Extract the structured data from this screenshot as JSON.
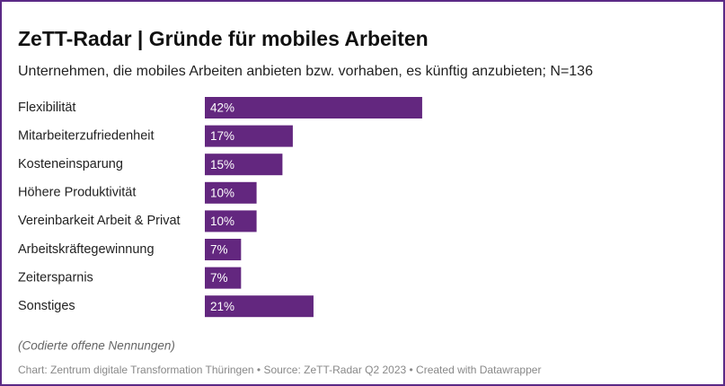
{
  "chart_data": {
    "type": "bar",
    "orientation": "horizontal",
    "title": "ZeTT-Radar | Gründe für mobiles Arbeiten",
    "subtitle": "Unternehmen, die mobiles Arbeiten anbieten bzw. vorhaben, es künftig anzubieten; N=136",
    "categories": [
      "Flexibilität",
      "Mitarbeiterzufriedenheit",
      "Kosteneinsparung",
      "Höhere Produktivität",
      "Vereinbarkeit Arbeit & Privat",
      "Arbeitskräftegewinnung",
      "Zeitersparnis",
      "Sonstiges"
    ],
    "values": [
      42,
      17,
      15,
      10,
      10,
      7,
      7,
      21
    ],
    "value_labels": [
      "42%",
      "17%",
      "15%",
      "10%",
      "10%",
      "7%",
      "7%",
      "21%"
    ],
    "color": "#63277f",
    "note": "(Codierte offene Nennungen)",
    "source": "Chart: Zentrum digitale Transformation Thüringen • Source: ZeTT-Radar Q2 2023 • Created with Datawrapper"
  }
}
